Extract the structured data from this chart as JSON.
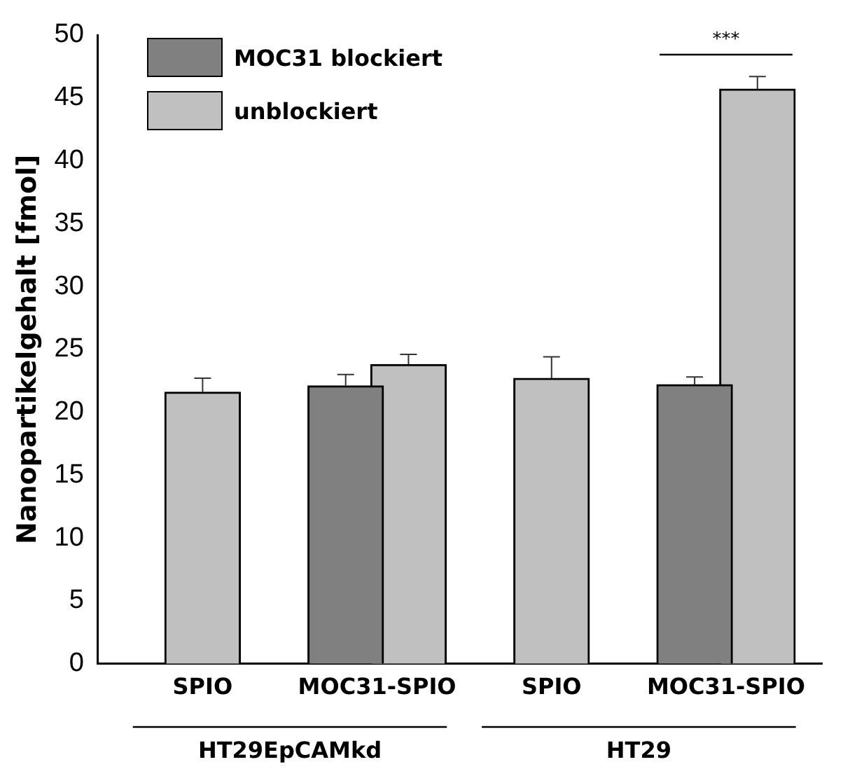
{
  "chart_data": {
    "type": "bar",
    "ylabel": "Nanopartikelgehalt [fmol]",
    "categories": [
      "SPIO",
      "MOC31-SPIO",
      "SPIO",
      "MOC31-SPIO"
    ],
    "series": [
      {
        "name": "MOC31 blockiert",
        "color": "#808080",
        "values": [
          null,
          22.1,
          null,
          22.2
        ],
        "errors": [
          null,
          [
            22.1,
            23.0
          ],
          null,
          [
            22.2,
            22.8
          ]
        ]
      },
      {
        "name": "unblockiert",
        "color": "#c0c0c0",
        "values": [
          21.6,
          23.8,
          22.7,
          45.7
        ],
        "errors": [
          [
            21.6,
            22.7
          ],
          [
            23.8,
            24.6
          ],
          [
            22.7,
            24.4
          ],
          [
            45.7,
            46.7
          ]
        ]
      }
    ],
    "ylim": [
      0,
      50
    ],
    "yticks": [
      0,
      5,
      10,
      15,
      20,
      25,
      30,
      35,
      40,
      45,
      50
    ],
    "grid": false,
    "legend": "top left",
    "annotations": [
      "HT29EpCAMkd",
      "HT29",
      "***"
    ]
  }
}
